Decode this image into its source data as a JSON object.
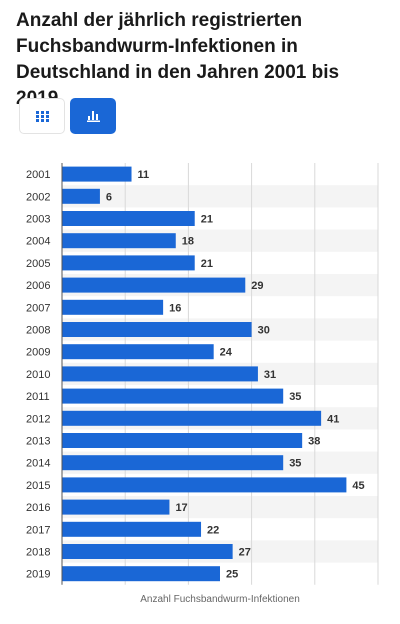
{
  "title": "Anzahl der jährlich registrierten Fuchsbandwurm-Infektionen in Deutschland in den Jahren 2001 bis 2019",
  "view_toggle": {
    "table_icon": "table-grid-icon",
    "chart_icon": "bar-chart-icon",
    "active": "chart"
  },
  "colors": {
    "bar": "#1a67d6",
    "accent": "#1a67d6",
    "stripe": "#f4f4f4",
    "grid": "#d9d9d9",
    "text": "#333333"
  },
  "chart_data": {
    "type": "bar",
    "orientation": "horizontal",
    "title": "Anzahl der jährlich registrierten Fuchsbandwurm-Infektionen in Deutschland in den Jahren 2001 bis 2019",
    "categories": [
      "2001",
      "2002",
      "2003",
      "2004",
      "2005",
      "2006",
      "2007",
      "2008",
      "2009",
      "2010",
      "2011",
      "2012",
      "2013",
      "2014",
      "2015",
      "2016",
      "2017",
      "2018",
      "2019"
    ],
    "values": [
      11,
      6,
      21,
      18,
      21,
      29,
      16,
      30,
      24,
      31,
      35,
      41,
      38,
      35,
      45,
      17,
      22,
      27,
      25
    ],
    "xlabel": "Anzahl Fuchsbandwurm-Infektionen",
    "ylabel": "",
    "xlim": [
      0,
      50
    ],
    "grid": true,
    "data_labels": true,
    "legend": false
  }
}
